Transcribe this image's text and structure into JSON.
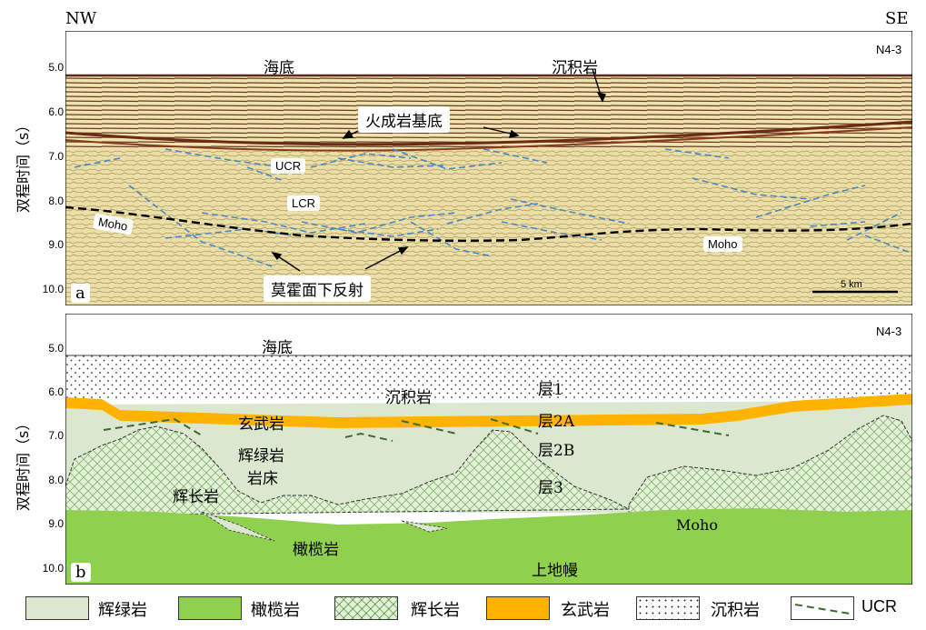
{
  "corners": {
    "left": "NW",
    "right": "SE"
  },
  "panel_a": {
    "id": "N4-3",
    "letter": "a",
    "ylabel": "双程时间（s）",
    "ticks": [
      "5.0",
      "6.0",
      "7.0",
      "8.0",
      "9.0",
      "10.0"
    ],
    "labels": {
      "seafloor": "海底",
      "sediment": "沉积岩",
      "basement": "火成岩基底",
      "ucr": "UCR",
      "lcr": "LCR",
      "moho_left": "Moho",
      "moho_right": "Moho",
      "sub_moho": "莫霍面下反射",
      "scale": "5 km"
    }
  },
  "panel_b": {
    "id": "N4-3",
    "letter": "b",
    "ylabel": "双程时间（s）",
    "ticks": [
      "5.0",
      "6.0",
      "7.0",
      "8.0",
      "9.0",
      "10.0"
    ],
    "labels": {
      "seafloor": "海底",
      "sediment": "沉积岩",
      "layer1": "层1",
      "basalt": "玄武岩",
      "layer2a": "层2A",
      "diabase": "辉绿岩",
      "sill": "岩床",
      "layer2b": "层2B",
      "gabbro": "辉长岩",
      "layer3": "层3",
      "moho": "Moho",
      "peridotite": "橄榄岩",
      "upper_mantle": "上地幔"
    }
  },
  "legend": [
    {
      "label": "辉绿岩",
      "fill": "#dbe8cf"
    },
    {
      "label": "橄榄岩",
      "fill": "#8fd14f"
    },
    {
      "label": "辉长岩",
      "fill": "gabbro"
    },
    {
      "label": "玄武岩",
      "fill": "#ffb300"
    },
    {
      "label": "沉积岩",
      "fill": "dots"
    },
    {
      "label": "UCR",
      "fill": "dash"
    }
  ],
  "colors": {
    "diabase": "#dbe8cf",
    "peridotite": "#8fd14f",
    "basalt": "#ffb300",
    "seismic_bg": "#e8dfa8",
    "reflector": "#4a88c9"
  }
}
